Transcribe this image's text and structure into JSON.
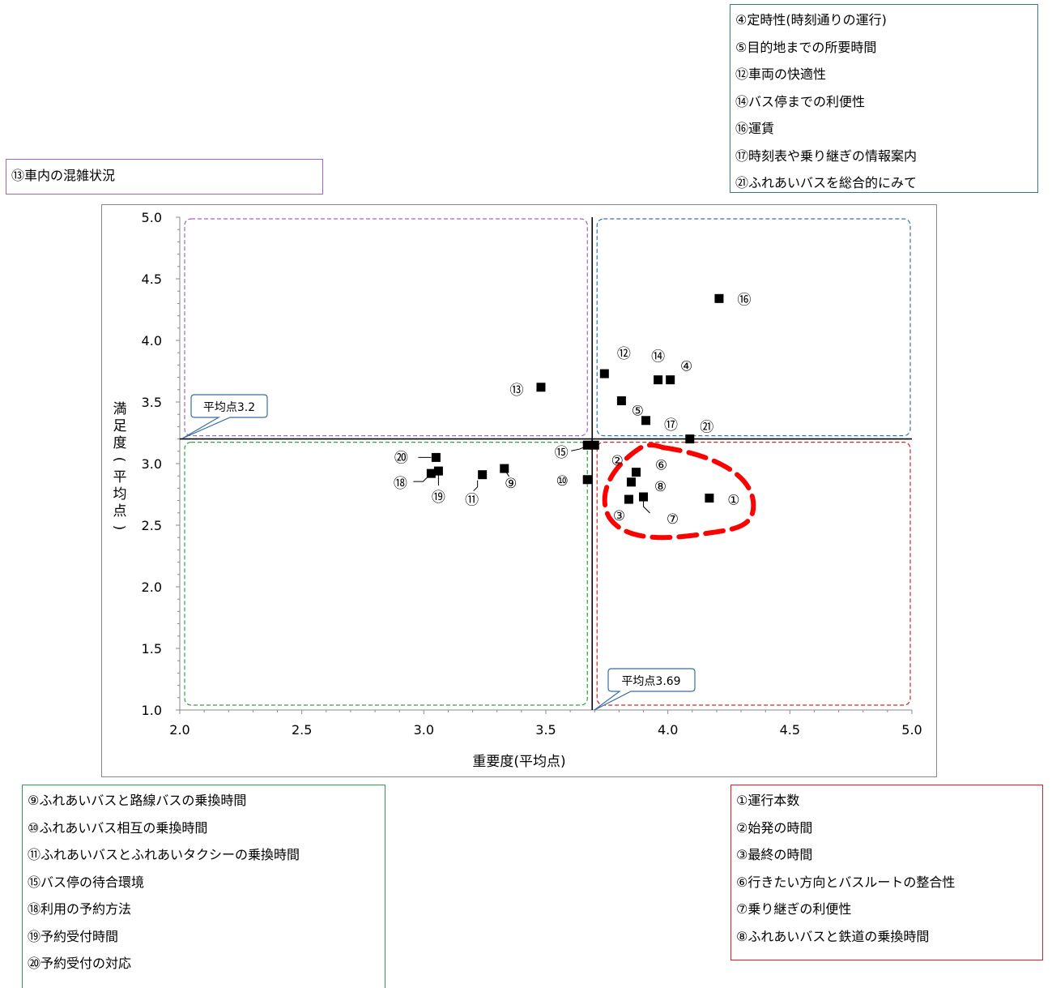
{
  "legends": {
    "top_right": [
      "④定時性(時刻通りの運行)",
      "⑤目的地までの所要時間",
      "⑫車両の快適性",
      "⑭バス停までの利便性",
      "⑯運賃",
      "⑰時刻表や乗り継ぎの情報案内",
      "㉑ふれあいバスを総合的にみて"
    ],
    "top_left": [
      "⑬車内の混雑状況"
    ],
    "bottom_left": [
      "⑨ふれあいバスと路線バスの乗換時間",
      "⑩ふれあいバス相互の乗換時間",
      "⑪ふれあいバスとふれあいタクシーの乗換時間",
      "⑮バス停の待合環境",
      "⑱利用の予約方法",
      "⑲予約受付時間",
      "⑳予約受付の対応"
    ],
    "bottom_right": [
      "①運行本数",
      "②始発の時間",
      "③最終の時間",
      "⑥行きたい方向とバスルートの整合性",
      "⑦乗り継ぎの利便性",
      "⑧ふれあいバスと鉄道の乗換時間"
    ]
  },
  "colors": {
    "top_right": "#2e75b6",
    "top_left": "#9966cc",
    "bottom_left": "#2ea043",
    "bottom_right": "#e02020",
    "highlight": "#ff0000",
    "marker": "#000000"
  },
  "chart_data": {
    "type": "scatter",
    "xlabel": "重要度(平均点)",
    "ylabel": "満足度(平均点)",
    "xlim": [
      2.0,
      5.0
    ],
    "ylim": [
      1.0,
      5.0
    ],
    "xticks": [
      "2.0",
      "2.5",
      "3.0",
      "3.5",
      "4.0",
      "4.5",
      "5.0"
    ],
    "yticks": [
      "1.0",
      "1.5",
      "2.0",
      "2.5",
      "3.0",
      "3.5",
      "4.0",
      "4.5",
      "5.0"
    ],
    "mean_x": 3.69,
    "mean_y": 3.2,
    "mean_x_label": "平均点3.69",
    "mean_y_label": "平均点3.2",
    "grid": false,
    "points": [
      {
        "label": "①",
        "x": 4.17,
        "y": 2.72
      },
      {
        "label": "②",
        "x": 3.7,
        "y": 3.15
      },
      {
        "label": "③",
        "x": 3.84,
        "y": 2.71
      },
      {
        "label": "④",
        "x": 4.01,
        "y": 3.68
      },
      {
        "label": "⑤",
        "x": 3.81,
        "y": 3.51
      },
      {
        "label": "⑥",
        "x": 3.87,
        "y": 2.93
      },
      {
        "label": "⑦",
        "x": 3.9,
        "y": 2.73
      },
      {
        "label": "⑧",
        "x": 3.85,
        "y": 2.85
      },
      {
        "label": "⑨",
        "x": 3.33,
        "y": 2.96
      },
      {
        "label": "⑩",
        "x": 3.67,
        "y": 2.87
      },
      {
        "label": "⑪",
        "x": 3.24,
        "y": 2.91
      },
      {
        "label": "⑫",
        "x": 3.74,
        "y": 3.73
      },
      {
        "label": "⑬",
        "x": 3.48,
        "y": 3.62
      },
      {
        "label": "⑭",
        "x": 3.96,
        "y": 3.68
      },
      {
        "label": "⑮",
        "x": 3.67,
        "y": 3.15
      },
      {
        "label": "⑯",
        "x": 4.21,
        "y": 4.34
      },
      {
        "label": "⑰",
        "x": 3.91,
        "y": 3.35
      },
      {
        "label": "⑱",
        "x": 3.03,
        "y": 2.92
      },
      {
        "label": "⑲",
        "x": 3.06,
        "y": 2.94
      },
      {
        "label": "⑳",
        "x": 3.05,
        "y": 3.05
      },
      {
        "label": "㉑",
        "x": 4.09,
        "y": 3.2
      }
    ]
  }
}
